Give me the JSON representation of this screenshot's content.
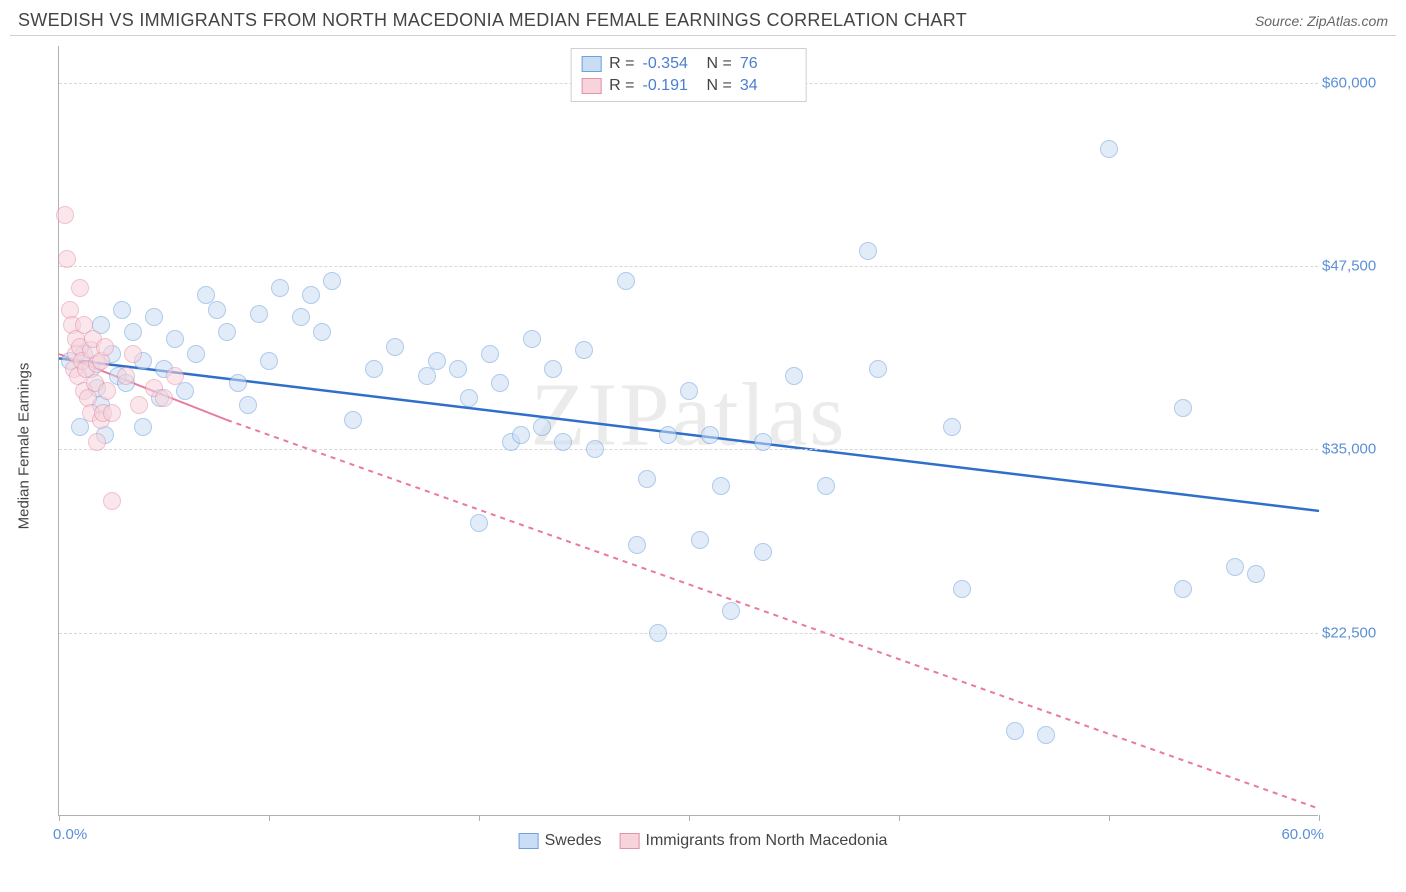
{
  "header": {
    "title": "SWEDISH VS IMMIGRANTS FROM NORTH MACEDONIA MEDIAN FEMALE EARNINGS CORRELATION CHART",
    "source_prefix": "Source: ",
    "source_name": "ZipAtlas.com"
  },
  "chart": {
    "type": "scatter",
    "watermark": "ZIPatlas",
    "ylabel": "Median Female Earnings",
    "xlim": [
      0,
      60
    ],
    "ylim": [
      10000,
      62500
    ],
    "xlim_labels": {
      "min": "0.0%",
      "max": "60.0%"
    },
    "xtick_positions": [
      0,
      10,
      20,
      30,
      40,
      50,
      60
    ],
    "yticks": [
      {
        "v": 22500,
        "label": "$22,500"
      },
      {
        "v": 35000,
        "label": "$35,000"
      },
      {
        "v": 47500,
        "label": "$47,500"
      },
      {
        "v": 60000,
        "label": "$60,000"
      }
    ],
    "background_color": "#ffffff",
    "grid_color": "#d8d8d8",
    "marker_radius": 9,
    "marker_opacity": 0.55,
    "series": [
      {
        "id": "swedes",
        "label": "Swedes",
        "color_fill": "#c9ddf4",
        "color_stroke": "#6fa0dd",
        "line_color": "#2f6fc9",
        "line_width": 2.5,
        "line_dash": "none",
        "R": "-0.354",
        "N": "76",
        "trend": {
          "x1": 0,
          "y1": 41200,
          "x2": 60,
          "y2": 30800
        },
        "points": [
          [
            0.5,
            41000
          ],
          [
            1.0,
            36500
          ],
          [
            1.2,
            41500
          ],
          [
            1.5,
            40500
          ],
          [
            1.8,
            39200
          ],
          [
            2.0,
            43500
          ],
          [
            2.0,
            38000
          ],
          [
            2.2,
            36000
          ],
          [
            2.5,
            41500
          ],
          [
            2.8,
            40000
          ],
          [
            3.0,
            44500
          ],
          [
            3.2,
            39500
          ],
          [
            3.5,
            43000
          ],
          [
            4.0,
            41000
          ],
          [
            4.0,
            36500
          ],
          [
            4.5,
            44000
          ],
          [
            4.8,
            38500
          ],
          [
            5.0,
            40500
          ],
          [
            5.5,
            42500
          ],
          [
            6.0,
            39000
          ],
          [
            6.5,
            41500
          ],
          [
            7.0,
            45500
          ],
          [
            7.5,
            44500
          ],
          [
            8.0,
            43000
          ],
          [
            8.5,
            39500
          ],
          [
            9.0,
            38000
          ],
          [
            9.5,
            44200
          ],
          [
            10.0,
            41000
          ],
          [
            10.5,
            46000
          ],
          [
            11.5,
            44000
          ],
          [
            12.0,
            45500
          ],
          [
            12.5,
            43000
          ],
          [
            13.0,
            46500
          ],
          [
            14.0,
            37000
          ],
          [
            15.0,
            40500
          ],
          [
            16.0,
            42000
          ],
          [
            17.5,
            40000
          ],
          [
            18.0,
            41000
          ],
          [
            19.0,
            40500
          ],
          [
            19.5,
            38500
          ],
          [
            20.0,
            30000
          ],
          [
            20.5,
            41500
          ],
          [
            21.0,
            39500
          ],
          [
            21.5,
            35500
          ],
          [
            22.0,
            36000
          ],
          [
            22.5,
            42500
          ],
          [
            23.0,
            36500
          ],
          [
            23.5,
            40500
          ],
          [
            24.0,
            35500
          ],
          [
            25.0,
            41800
          ],
          [
            25.5,
            35000
          ],
          [
            27.0,
            46500
          ],
          [
            27.5,
            28500
          ],
          [
            28.0,
            33000
          ],
          [
            28.5,
            22500
          ],
          [
            29.0,
            36000
          ],
          [
            30.0,
            39000
          ],
          [
            30.5,
            28800
          ],
          [
            31.0,
            36000
          ],
          [
            31.5,
            32500
          ],
          [
            32.0,
            24000
          ],
          [
            33.5,
            35500
          ],
          [
            33.5,
            28000
          ],
          [
            35.0,
            40000
          ],
          [
            36.5,
            32500
          ],
          [
            38.5,
            48500
          ],
          [
            39.0,
            40500
          ],
          [
            42.5,
            36500
          ],
          [
            43.0,
            25500
          ],
          [
            45.5,
            15800
          ],
          [
            47.0,
            15500
          ],
          [
            50.0,
            55500
          ],
          [
            53.5,
            37800
          ],
          [
            53.5,
            25500
          ],
          [
            56.0,
            27000
          ],
          [
            57.0,
            26500
          ]
        ]
      },
      {
        "id": "macedonia",
        "label": "Immigrants from North Macedonia",
        "color_fill": "#f7d3dc",
        "color_stroke": "#e392a8",
        "line_color": "#e87b9a",
        "line_width": 2,
        "line_dash": "5,5",
        "R": "-0.191",
        "N": "34",
        "trend_solid": {
          "x1": 0,
          "y1": 41500,
          "x2": 8,
          "y2": 37000
        },
        "trend": {
          "x1": 8,
          "y1": 37000,
          "x2": 60,
          "y2": 10500
        },
        "points": [
          [
            0.3,
            51000
          ],
          [
            0.4,
            48000
          ],
          [
            0.5,
            44500
          ],
          [
            0.6,
            43500
          ],
          [
            0.7,
            40500
          ],
          [
            0.8,
            42500
          ],
          [
            0.8,
            41500
          ],
          [
            0.9,
            40000
          ],
          [
            1.0,
            46000
          ],
          [
            1.0,
            42000
          ],
          [
            1.1,
            41000
          ],
          [
            1.2,
            39000
          ],
          [
            1.2,
            43500
          ],
          [
            1.3,
            40500
          ],
          [
            1.4,
            38500
          ],
          [
            1.5,
            41800
          ],
          [
            1.5,
            37500
          ],
          [
            1.6,
            42500
          ],
          [
            1.7,
            39500
          ],
          [
            1.8,
            40800
          ],
          [
            1.8,
            35500
          ],
          [
            2.0,
            41000
          ],
          [
            2.0,
            37000
          ],
          [
            2.1,
            37500
          ],
          [
            2.2,
            42000
          ],
          [
            2.3,
            39000
          ],
          [
            2.5,
            37500
          ],
          [
            2.5,
            31500
          ],
          [
            3.2,
            40000
          ],
          [
            3.5,
            41500
          ],
          [
            3.8,
            38000
          ],
          [
            4.5,
            39200
          ],
          [
            5.0,
            38500
          ],
          [
            5.5,
            40000
          ]
        ]
      }
    ],
    "legend_labels": {
      "R": "R =",
      "N": "N ="
    }
  }
}
